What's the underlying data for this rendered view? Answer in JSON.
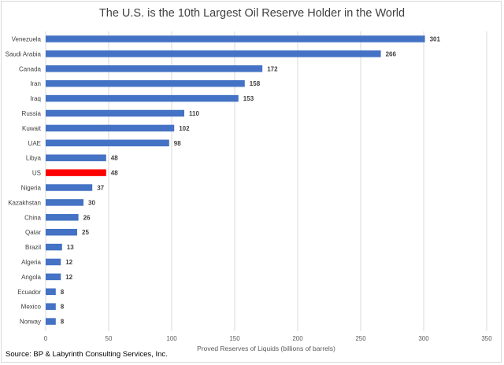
{
  "chart_data": {
    "type": "bar",
    "orientation": "horizontal",
    "title": "The U.S. is the 10th Largest Oil Reserve Holder in the World",
    "xlabel": "Proved Reserves of Liquids (billions of barrels)",
    "ylabel": "",
    "xlim": [
      0,
      350
    ],
    "xticks": [
      0,
      50,
      100,
      150,
      200,
      250,
      300,
      350
    ],
    "grid": true,
    "legend": "none",
    "categories": [
      "Venezuela",
      "Saudi Arabia",
      "Canada",
      "Iran",
      "Iraq",
      "Russia",
      "Kuwait",
      "UAE",
      "Libya",
      "US",
      "Nigeria",
      "Kazakhstan",
      "China",
      "Qatar",
      "Brazil",
      "Algeria",
      "Angola",
      "Ecuador",
      "Mexico",
      "Norway"
    ],
    "values": [
      301,
      266,
      172,
      158,
      153,
      110,
      102,
      98,
      48,
      48,
      37,
      30,
      26,
      25,
      13,
      12,
      12,
      8,
      8,
      8
    ],
    "highlight": "US",
    "bar_color": "#4472c4",
    "highlight_color": "#ff0000"
  },
  "source": "Source: BP & Labyrinth Consulting Services, Inc."
}
